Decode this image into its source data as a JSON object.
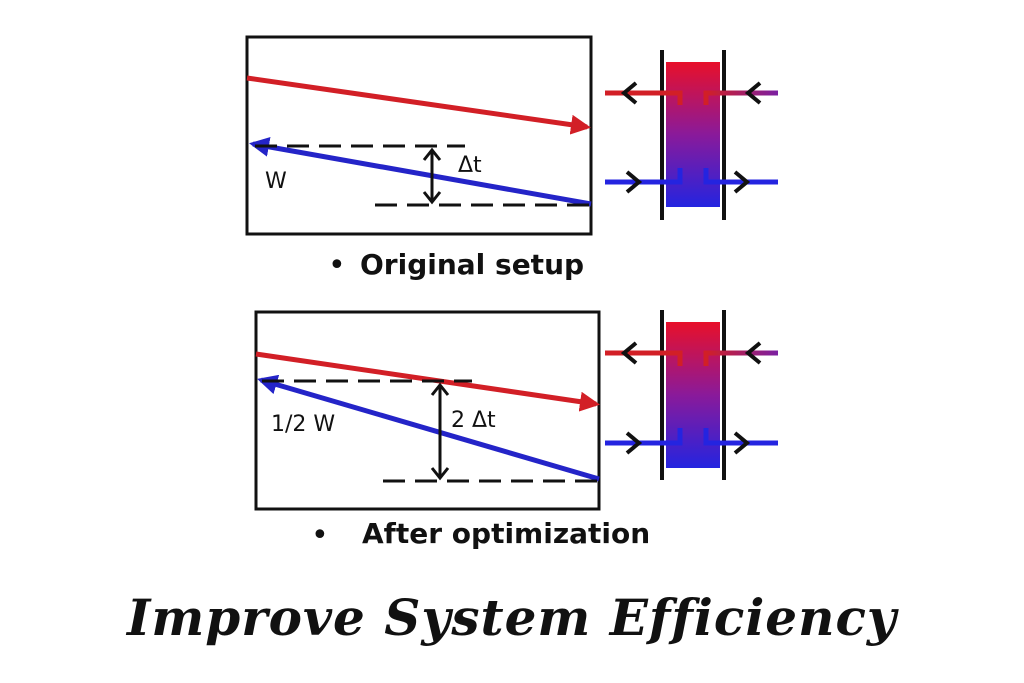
{
  "colors": {
    "hot": "#d21f26",
    "cold": "#2424c8",
    "purple": "#7b1fa2",
    "ink": "#111111"
  },
  "panels": [
    {
      "flow_label": "W",
      "delta_label": "Δt",
      "caption": "Original setup"
    },
    {
      "flow_label": "1/2 W",
      "delta_label": "2 Δt",
      "caption": "After optimization"
    }
  ],
  "footer": {
    "title": "Improve System Efficiency"
  },
  "icons": [
    "arrow-icon",
    "heat-exchanger-icon",
    "bullet-icon"
  ]
}
